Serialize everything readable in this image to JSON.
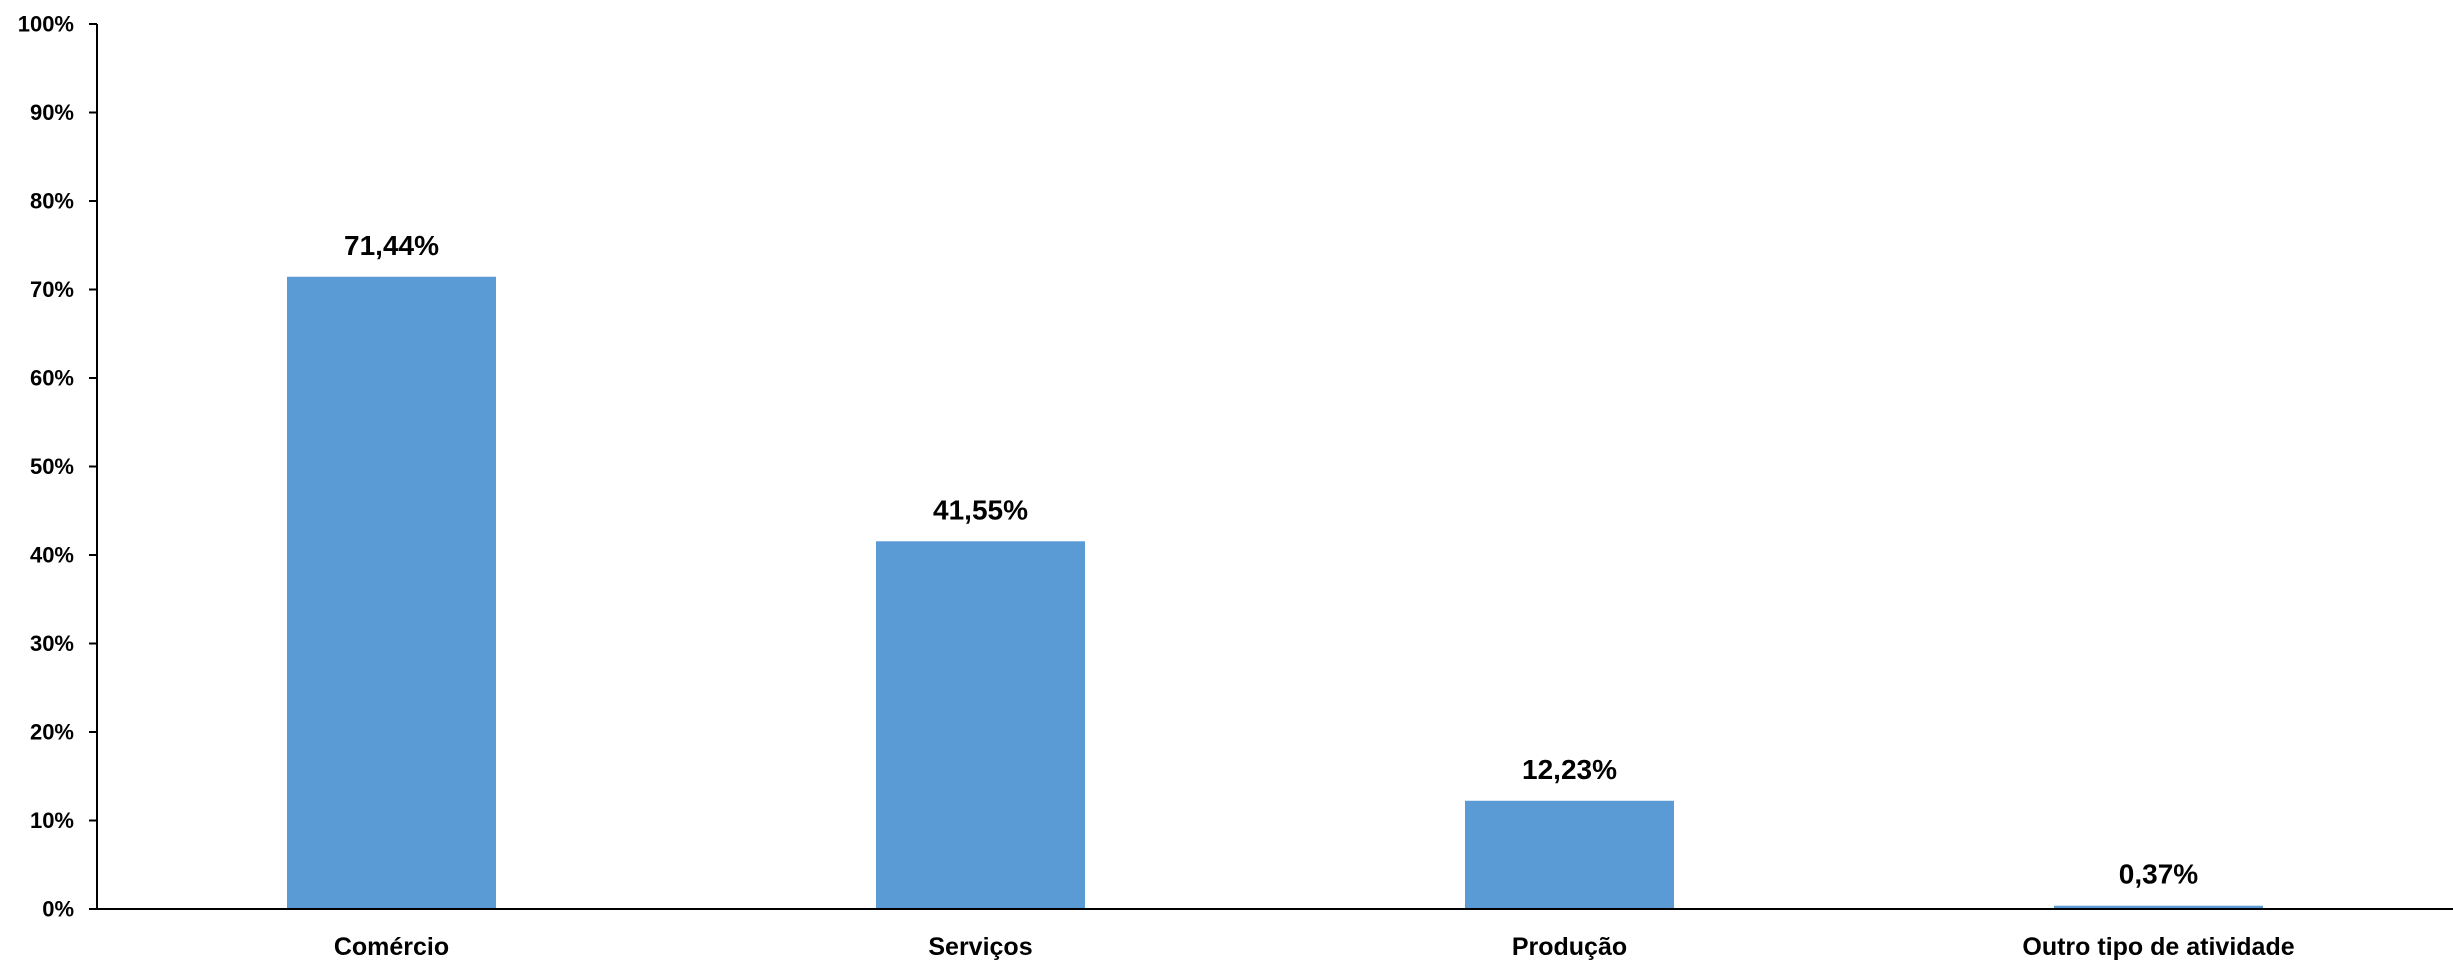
{
  "colors": {
    "bar": "#5b9bd5",
    "axis": "#000000"
  },
  "chart_data": {
    "type": "bar",
    "title": "",
    "xlabel": "",
    "ylabel": "",
    "categories": [
      "Comércio",
      "Serviços",
      "Produção",
      "Outro tipo de atividade"
    ],
    "values": [
      71.44,
      41.55,
      12.23,
      0.37
    ],
    "data_labels": [
      "71,44%",
      "41,55%",
      "12,23%",
      "0,37%"
    ],
    "ylim": [
      0,
      100
    ],
    "yticks": [
      0,
      10,
      20,
      30,
      40,
      50,
      60,
      70,
      80,
      90,
      100
    ],
    "ytick_labels": [
      "0%",
      "10%",
      "20%",
      "30%",
      "40%",
      "50%",
      "60%",
      "70%",
      "80%",
      "90%",
      "100%"
    ],
    "grid": false,
    "legend": "none"
  }
}
